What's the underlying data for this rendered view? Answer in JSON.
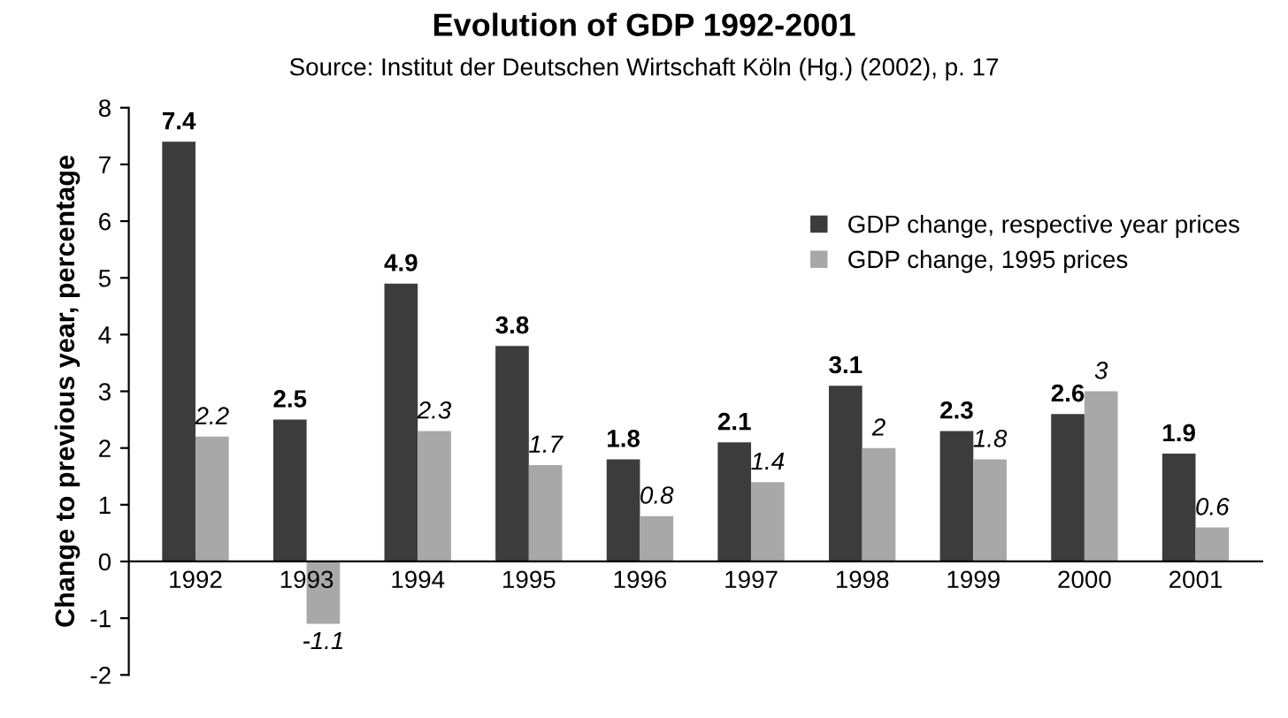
{
  "chart_data": {
    "type": "bar",
    "title": "Evolution of GDP 1992-2001",
    "subtitle": "Source: Institut der Deutschen Wirtschaft Köln (Hg.) (2002), p. 17",
    "ylabel": "Change to previous year, percentage",
    "categories": [
      "1992",
      "1993",
      "1994",
      "1995",
      "1996",
      "1997",
      "1998",
      "1999",
      "2000",
      "2001"
    ],
    "series": [
      {
        "name": "GDP change, respective year prices",
        "color": "#3c3c3c",
        "values": [
          7.4,
          2.5,
          4.9,
          3.8,
          1.8,
          2.1,
          3.1,
          2.3,
          2.6,
          1.9
        ]
      },
      {
        "name": "GDP change, 1995 prices",
        "color": "#a8a8a8",
        "values": [
          2.2,
          -1.1,
          2.3,
          1.7,
          0.8,
          1.4,
          2,
          1.8,
          3,
          0.6
        ]
      }
    ],
    "ylim": [
      -2,
      8
    ],
    "yticks": [
      -2,
      -1,
      0,
      1,
      2,
      3,
      4,
      5,
      6,
      7,
      8
    ],
    "data_labels": true,
    "legend": "top right",
    "grid": false
  }
}
